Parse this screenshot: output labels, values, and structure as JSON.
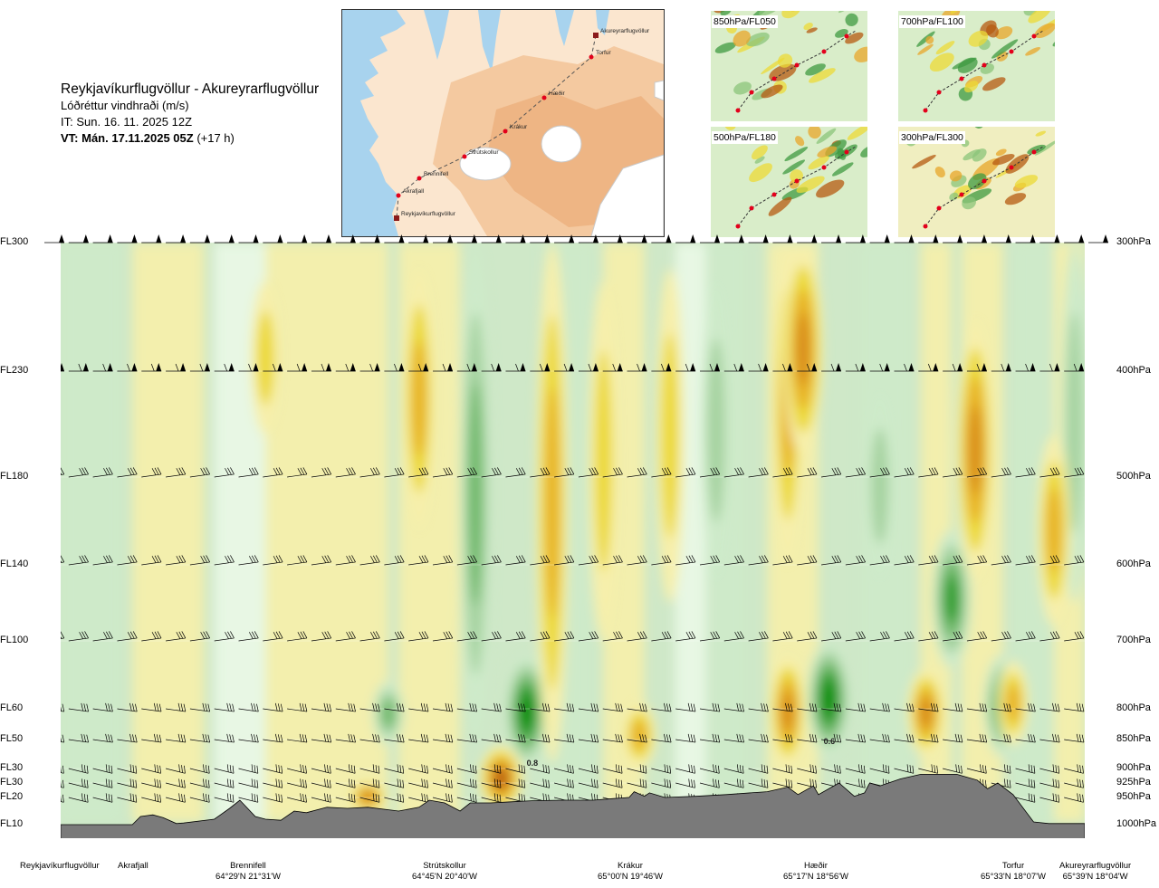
{
  "header": {
    "route": "Reykjavíkurflugvöllur - Akureyrarflugvöllur",
    "variable": "Lóðréttur vindhraði (m/s)",
    "init_time": "IT: Sun. 16. 11. 2025 12Z",
    "valid_prefix": "VT: Mán. 17.11.2025 05Z",
    "valid_suffix": " (+17 h)"
  },
  "map": {
    "places": [
      "Akureyrarflugvöllur",
      "Torfur",
      "Hæðir",
      "Krákur",
      "Strútskollur",
      "Brennifell",
      "Akrafjall",
      "Reykjavíkurflugvöllur"
    ],
    "colors": {
      "sea": "#a8d3ee",
      "land_low": "#fbe6cf",
      "land_mid": "#f4c9a0",
      "land_high": "#eeb584",
      "ice": "#ffffff",
      "route": "#555555",
      "marker": "#e3001b"
    }
  },
  "thumbnails": [
    {
      "label": "850hPa/FL050"
    },
    {
      "label": "700hPa/FL100"
    },
    {
      "label": "500hPa/FL180"
    },
    {
      "label": "300hPa/FL300"
    }
  ],
  "chart_data": {
    "type": "heatmap",
    "title": "Lóðréttur vindhraði (m/s)",
    "description_x": "distance along route Reykjavíkurflugvöllur to Akureyrarflugvöllur (0–100 %)",
    "left_axis_labels": [
      "FL300",
      "FL230",
      "FL180",
      "FL140",
      "FL100",
      "FL60",
      "FL50",
      "FL30",
      "FL30",
      "FL20",
      "FL10"
    ],
    "right_axis_labels": [
      "300hPa",
      "400hPa",
      "500hPa",
      "600hPa",
      "700hPa",
      "800hPa",
      "850hPa",
      "900hPa",
      "925hPa",
      "950hPa",
      "1000hPa"
    ],
    "pressure_levels_hPa": [
      300,
      400,
      500,
      600,
      700,
      800,
      850,
      900,
      925,
      950,
      1000
    ],
    "stations": [
      {
        "name": "Reykjavíkurflugvöllur",
        "coord": "",
        "pos": 0
      },
      {
        "name": "Akrafjall",
        "coord": "",
        "pos": 0.09
      },
      {
        "name": "Brennifell",
        "coord": "64°29'N 21°31'W",
        "pos": 0.19
      },
      {
        "name": "Strútskollur",
        "coord": "64°45'N 20°40'W",
        "pos": 0.38
      },
      {
        "name": "Krákur",
        "coord": "65°00'N 19°46'W",
        "pos": 0.57
      },
      {
        "name": "Hæðir",
        "coord": "65°17'N 18°56'W",
        "pos": 0.75
      },
      {
        "name": "Torfur",
        "coord": "65°33'N 18°07'W",
        "pos": 0.95
      },
      {
        "name": "Akureyrarflugvöllur",
        "coord": "65°39'N 18°04'W",
        "pos": 1.0
      }
    ],
    "contour_labels": [
      {
        "text": "0.8",
        "pos": 0.455,
        "hPa": 895
      },
      {
        "text": "0.6",
        "pos": 0.745,
        "hPa": 858
      }
    ],
    "color_scale": {
      "values": [
        -1.0,
        -0.6,
        -0.3,
        -0.15,
        -0.05,
        0.05,
        0.15,
        0.3,
        0.6,
        1.0
      ],
      "colors": [
        "#008f00",
        "#2d9e2f",
        "#6fb96a",
        "#a6d3a0",
        "#cdeac9",
        "#eaf8e7",
        "#f6efaa",
        "#ecd936",
        "#e8b22a",
        "#d98c1f",
        "#b65a10"
      ]
    },
    "updrafts": [
      {
        "pos": 0.48,
        "top_hPa": 300,
        "bottom_hPa": 890,
        "strength": 0.55
      },
      {
        "pos": 0.53,
        "top_hPa": 330,
        "bottom_hPa": 700,
        "strength": 0.45
      },
      {
        "pos": 0.595,
        "top_hPa": 320,
        "bottom_hPa": 650,
        "strength": 0.42
      },
      {
        "pos": 0.71,
        "top_hPa": 300,
        "bottom_hPa": 600,
        "strength": 0.5
      },
      {
        "pos": 0.725,
        "top_hPa": 300,
        "bottom_hPa": 480,
        "strength": 0.85
      },
      {
        "pos": 0.893,
        "top_hPa": 360,
        "bottom_hPa": 620,
        "strength": 0.75
      },
      {
        "pos": 0.97,
        "top_hPa": 460,
        "bottom_hPa": 680,
        "strength": 0.6
      },
      {
        "pos": 0.2,
        "top_hPa": 330,
        "bottom_hPa": 460,
        "strength": 0.45
      },
      {
        "pos": 0.35,
        "top_hPa": 320,
        "bottom_hPa": 560,
        "strength": 0.55
      },
      {
        "pos": 0.43,
        "top_hPa": 860,
        "bottom_hPa": 975,
        "strength": 1.0
      },
      {
        "pos": 0.3,
        "top_hPa": 920,
        "bottom_hPa": 980,
        "strength": 0.8
      },
      {
        "pos": 0.565,
        "top_hPa": 790,
        "bottom_hPa": 900,
        "strength": 0.6
      },
      {
        "pos": 0.71,
        "top_hPa": 720,
        "bottom_hPa": 900,
        "strength": 0.7
      },
      {
        "pos": 0.845,
        "top_hPa": 740,
        "bottom_hPa": 880,
        "strength": 0.75
      },
      {
        "pos": 0.93,
        "top_hPa": 730,
        "bottom_hPa": 860,
        "strength": 0.5
      }
    ],
    "downdrafts": [
      {
        "pos": 0.405,
        "top_hPa": 300,
        "bottom_hPa": 860,
        "strength": 0.55
      },
      {
        "pos": 0.455,
        "top_hPa": 720,
        "bottom_hPa": 900,
        "strength": 1.0
      },
      {
        "pos": 0.75,
        "top_hPa": 700,
        "bottom_hPa": 880,
        "strength": 1.0
      },
      {
        "pos": 0.87,
        "top_hPa": 560,
        "bottom_hPa": 740,
        "strength": 0.85
      },
      {
        "pos": 0.92,
        "top_hPa": 720,
        "bottom_hPa": 880,
        "strength": 0.8
      },
      {
        "pos": 0.32,
        "top_hPa": 760,
        "bottom_hPa": 860,
        "strength": 0.5
      },
      {
        "pos": 0.8,
        "top_hPa": 420,
        "bottom_hPa": 620,
        "strength": 0.4
      },
      {
        "pos": 0.64,
        "top_hPa": 330,
        "bottom_hPa": 620,
        "strength": 0.45
      },
      {
        "pos": 0.99,
        "top_hPa": 300,
        "bottom_hPa": 650,
        "strength": 0.35
      }
    ],
    "terrain_profile": {
      "pos": [
        0,
        0.07,
        0.078,
        0.09,
        0.1,
        0.113,
        0.12,
        0.15,
        0.165,
        0.175,
        0.18,
        0.19,
        0.2,
        0.215,
        0.228,
        0.24,
        0.26,
        0.28,
        0.3,
        0.33,
        0.35,
        0.36,
        0.375,
        0.39,
        0.4,
        0.42,
        0.44,
        0.46,
        0.49,
        0.52,
        0.54,
        0.555,
        0.56,
        0.57,
        0.575,
        0.59,
        0.62,
        0.65,
        0.69,
        0.71,
        0.72,
        0.735,
        0.74,
        0.76,
        0.775,
        0.785,
        0.79,
        0.8,
        0.82,
        0.84,
        0.86,
        0.875,
        0.885,
        0.895,
        0.905,
        0.915,
        0.93,
        0.95,
        0.965,
        1.0
      ],
      "hPa": [
        1000,
        1000,
        985,
        982,
        987,
        998,
        997,
        990,
        970,
        955,
        965,
        985,
        990,
        992,
        975,
        978,
        968,
        970,
        968,
        975,
        968,
        955,
        960,
        975,
        960,
        960,
        958,
        956,
        955,
        955,
        952,
        950,
        940,
        948,
        942,
        950,
        948,
        945,
        940,
        932,
        945,
        930,
        945,
        925,
        948,
        942,
        925,
        930,
        918,
        910,
        910,
        910,
        915,
        920,
        935,
        925,
        945,
        995,
        998,
        998
      ]
    },
    "wind_barb_levels_hPa": [
      300,
      400,
      500,
      600,
      700,
      800,
      850,
      900,
      925,
      950
    ]
  }
}
